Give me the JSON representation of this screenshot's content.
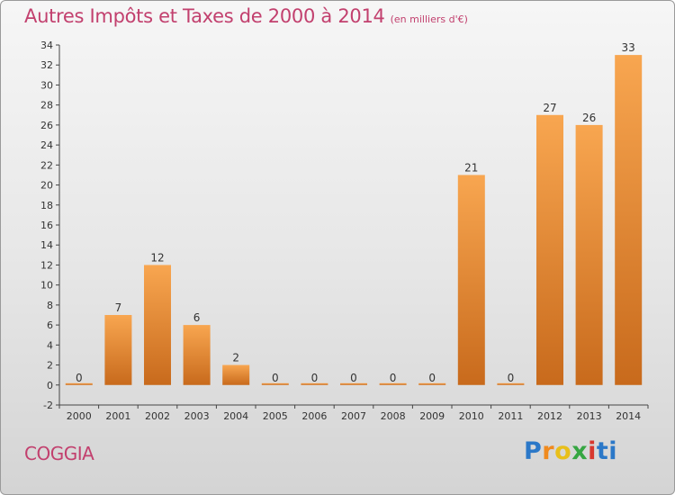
{
  "header": {
    "title": "Autres Impôts et Taxes de 2000 à 2014",
    "unit": "(en milliers d'€)"
  },
  "footer": {
    "commune": "COGGIA",
    "logo_letters": [
      "P",
      "r",
      "o",
      "x",
      "i",
      "ti"
    ]
  },
  "colors": {
    "title": "#c2406e",
    "bar_light": "#f7a24e",
    "bar_dark": "#c8681a"
  },
  "chart_data": {
    "type": "bar",
    "title": "Autres Impôts et Taxes de 2000 à 2014",
    "subtitle": "(en milliers d'€)",
    "xlabel": "",
    "ylabel": "",
    "categories": [
      "2000",
      "2001",
      "2002",
      "2003",
      "2004",
      "2005",
      "2006",
      "2007",
      "2008",
      "2009",
      "2010",
      "2011",
      "2012",
      "2013",
      "2014"
    ],
    "values": [
      0,
      7,
      12,
      6,
      2,
      0,
      0,
      0,
      0,
      0,
      21,
      0,
      27,
      26,
      33
    ],
    "data_labels": [
      "0",
      "7",
      "12",
      "6",
      "2",
      "0",
      "0",
      "0",
      "0",
      "0",
      "21",
      "0",
      "27",
      "26",
      "33"
    ],
    "ylim": [
      -2,
      34
    ],
    "yticks": [
      -2,
      0,
      2,
      4,
      6,
      8,
      10,
      12,
      14,
      16,
      18,
      20,
      22,
      24,
      26,
      28,
      30,
      32,
      34
    ],
    "grid": false
  }
}
